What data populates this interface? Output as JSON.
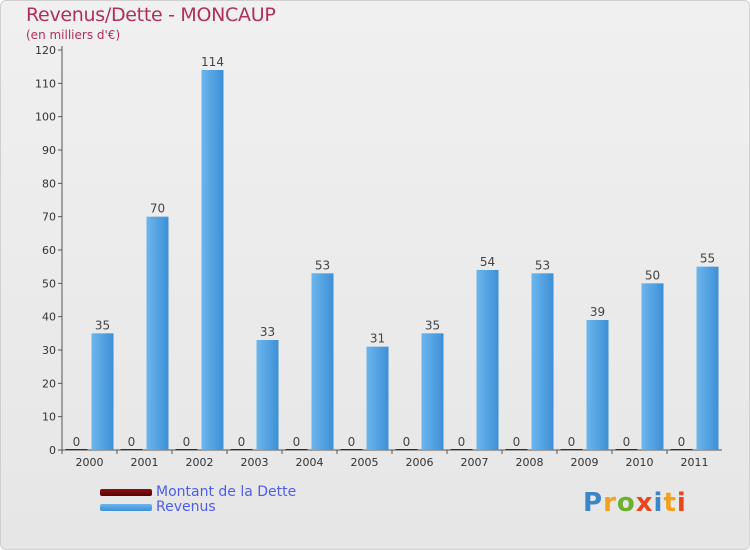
{
  "chart_data": {
    "type": "bar",
    "title": "Revenus/Dette - MONCAUP",
    "subtitle": "(en milliers d'€)",
    "categories": [
      "2000",
      "2001",
      "2002",
      "2003",
      "2004",
      "2005",
      "2006",
      "2007",
      "2008",
      "2009",
      "2010",
      "2011"
    ],
    "series": [
      {
        "name": "Montant de la Dette",
        "values": [
          0,
          0,
          0,
          0,
          0,
          0,
          0,
          0,
          0,
          0,
          0,
          0
        ],
        "color": "#7a0a0a"
      },
      {
        "name": "Revenus",
        "values": [
          35,
          70,
          114,
          33,
          53,
          31,
          35,
          54,
          53,
          39,
          50,
          55
        ],
        "color": "#4a9fe0"
      }
    ],
    "ylim": [
      0,
      120
    ],
    "yticks": [
      0,
      10,
      20,
      30,
      40,
      50,
      60,
      70,
      80,
      90,
      100,
      110,
      120
    ],
    "grid": false,
    "legend": "bottom-left"
  },
  "brand": {
    "logo_text": "Proxiti"
  },
  "colors": {
    "title": "#b0305a",
    "legend_text": "#4e5de8",
    "revenus_light": "#6cb6ee",
    "revenus_dark": "#2f7fc6",
    "debt": "#7a0a0a"
  }
}
